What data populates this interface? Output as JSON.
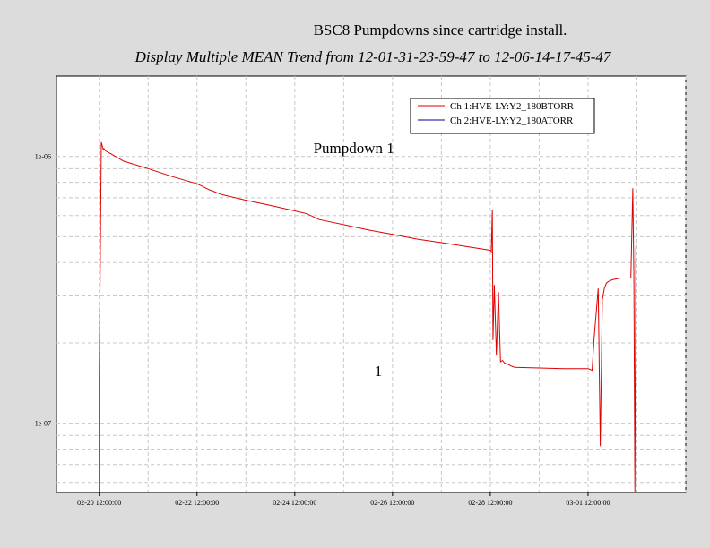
{
  "title": "BSC8 Pumpdowns  since cartridge install.",
  "subtitle": "Display Multiple MEAN Trend from 12-01-31-23-59-47 to 12-06-14-17-45-47",
  "chart_data": {
    "type": "line",
    "y_scale": "log",
    "ylim": [
      5.5e-08,
      2e-06
    ],
    "xlim": [
      "2012-02-19T15:00",
      "2012-03-03T12:00"
    ],
    "x_ticks": [
      "02-20 12:00:00",
      "02-22 12:00:00",
      "02-24 12:00:00",
      "02-26 12:00:00",
      "02-28 12:00:00",
      "03-01 12:00:00"
    ],
    "x_tick_values": [
      "2012-02-20T12:00",
      "2012-02-22T12:00",
      "2012-02-24T12:00",
      "2012-02-26T12:00",
      "2012-02-28T12:00",
      "2012-03-01T12:00"
    ],
    "y_ticks": [
      "1e-06",
      "1e-07"
    ],
    "y_tick_values": [
      1e-06,
      1e-07
    ],
    "grid": true,
    "legend_position": "top-right",
    "annotations": [
      {
        "text": "Pumpdown 1",
        "x": "2012-02-25T17:00",
        "y": 1.03e-06
      },
      {
        "text": "1",
        "x": "2012-02-26T05:00",
        "y": 1.5e-07
      }
    ],
    "series": [
      {
        "name": "Ch 1:HVE-LY:Y2_180BTORR",
        "color": "#e00000",
        "x": [
          "2012-02-20T12:00",
          "2012-02-20T12:01",
          "2012-02-20T13:00",
          "2012-02-20T14:00",
          "2012-02-20T14:20",
          "2012-02-20T15:00",
          "2012-02-20T18:00",
          "2012-02-21T00:00",
          "2012-02-21T12:00",
          "2012-02-22T00:00",
          "2012-02-22T12:00",
          "2012-02-22T18:00",
          "2012-02-23T00:00",
          "2012-02-23T12:00",
          "2012-02-24T00:00",
          "2012-02-24T12:00",
          "2012-02-24T18:00",
          "2012-02-25T00:00",
          "2012-02-25T12:00",
          "2012-02-26T00:00",
          "2012-02-26T12:00",
          "2012-02-27T00:00",
          "2012-02-27T12:00",
          "2012-02-28T00:00",
          "2012-02-28T12:00",
          "2012-02-28T12:30",
          "2012-02-28T13:00",
          "2012-02-28T13:20",
          "2012-02-28T14:00",
          "2012-02-28T15:00",
          "2012-02-28T16:00",
          "2012-02-28T17:00",
          "2012-02-28T18:00",
          "2012-02-28T19:00",
          "2012-02-28T20:00",
          "2012-02-28T21:00",
          "2012-02-28T22:00",
          "2012-02-29T00:00",
          "2012-02-29T12:00",
          "2012-03-01T00:00",
          "2012-03-01T12:00",
          "2012-03-01T14:00",
          "2012-03-01T15:00",
          "2012-03-01T17:00",
          "2012-03-01T18:00",
          "2012-03-01T19:00",
          "2012-03-01T20:00",
          "2012-03-01T21:00",
          "2012-03-01T22:00",
          "2012-03-02T00:00",
          "2012-03-02T04:00",
          "2012-03-02T09:00",
          "2012-03-02T10:00",
          "2012-03-02T10:30",
          "2012-03-02T11:00",
          "2012-03-02T11:30"
        ],
        "y": [
          5.5e-08,
          1.48e-07,
          1.13e-06,
          1.06e-06,
          1.07e-06,
          1.05e-06,
          1.02e-06,
          9.6e-07,
          9e-07,
          8.4e-07,
          7.9e-07,
          7.5e-07,
          7.2e-07,
          6.85e-07,
          6.55e-07,
          6.25e-07,
          6.1e-07,
          5.8e-07,
          5.55e-07,
          5.3e-07,
          5.1e-07,
          4.9e-07,
          4.75e-07,
          4.6e-07,
          4.45e-07,
          4.4e-07,
          6.3e-07,
          2.05e-07,
          3.3e-07,
          1.8e-07,
          3.1e-07,
          1.7e-07,
          1.72e-07,
          1.68e-07,
          1.67e-07,
          1.66e-07,
          1.64e-07,
          1.62e-07,
          1.61e-07,
          1.6e-07,
          1.6e-07,
          1.58e-07,
          2.1e-07,
          3.2e-07,
          8.2e-08,
          2.9e-07,
          3.2e-07,
          3.35e-07,
          3.4e-07,
          3.45e-07,
          3.5e-07,
          3.5e-07,
          7.6e-07,
          3.5e-07,
          5.5e-08,
          4.6e-07
        ]
      },
      {
        "name": "Ch 2:HVE-LY:Y2_180ATORR",
        "color": "#00008b",
        "x": [],
        "y": []
      }
    ]
  }
}
